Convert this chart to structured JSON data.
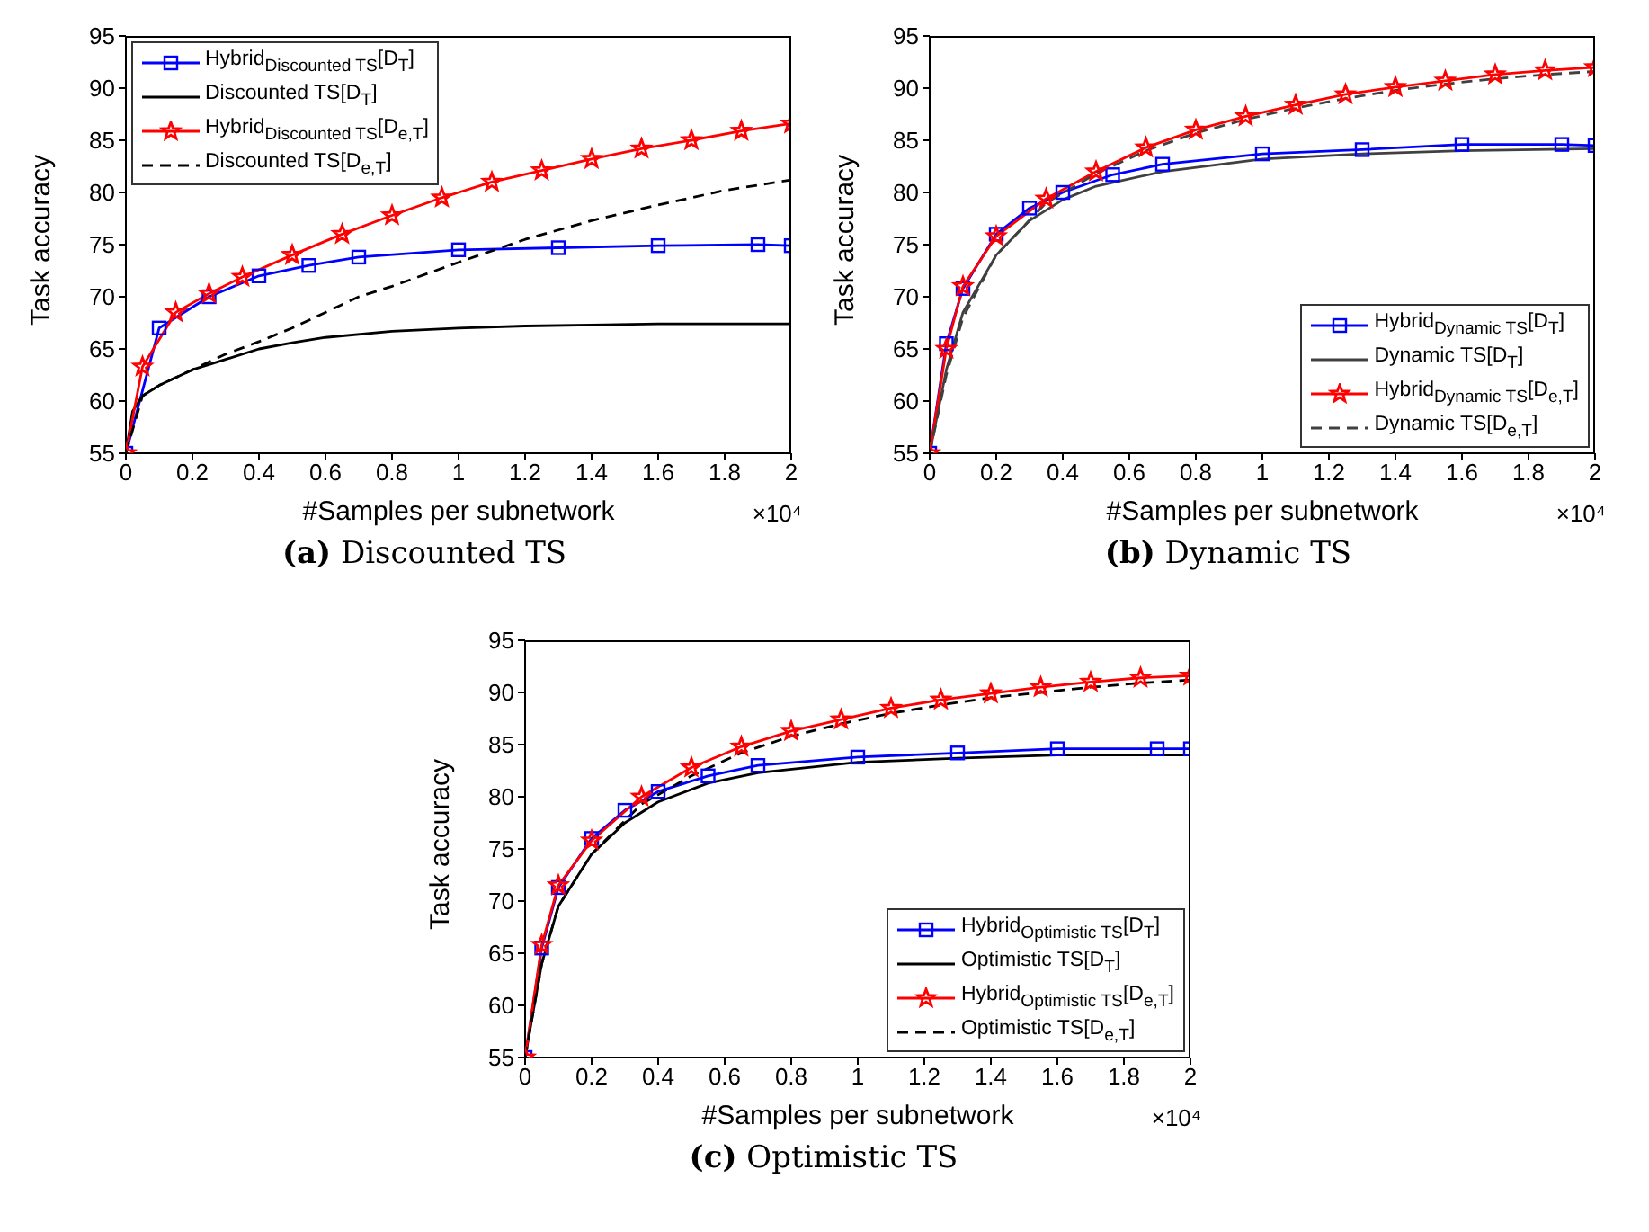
{
  "chart_data": [
    {
      "type": "line",
      "title": "(a) Discounted TS",
      "xlabel": "#Samples per subnetwork",
      "ylabel": "Task accuracy",
      "annotations": [
        "×10⁴"
      ],
      "xlim": [
        0,
        2
      ],
      "xticks": [
        0,
        0.2,
        0.4,
        0.6,
        0.8,
        1,
        1.2,
        1.4,
        1.6,
        1.8,
        2
      ],
      "ylim": [
        55,
        95
      ],
      "yticks": [
        55,
        60,
        65,
        70,
        75,
        80,
        85,
        90,
        95
      ],
      "grid": false,
      "legend": "top left",
      "series": [
        {
          "name": "Hybrid$_{Discounted TS}$[D$_{T}$]",
          "color": "#0000ff",
          "marker": "square",
          "line_style": "solid",
          "x": [
            0,
            0.1,
            0.25,
            0.4,
            0.55,
            0.7,
            1.0,
            1.3,
            1.6,
            1.9,
            2.0
          ],
          "values": [
            55,
            67,
            70,
            72,
            73,
            73.8,
            74.5,
            74.7,
            74.9,
            75,
            74.9
          ]
        },
        {
          "name": "Discounted TS[D$_{T}$]",
          "color": "#000000",
          "marker": "none",
          "line_style": "solid",
          "x": [
            0,
            0.02,
            0.05,
            0.1,
            0.2,
            0.3,
            0.4,
            0.5,
            0.6,
            0.8,
            1.0,
            1.2,
            1.4,
            1.6,
            1.8,
            2.0
          ],
          "values": [
            55,
            59,
            60.5,
            61.5,
            63,
            64,
            65,
            65.6,
            66.1,
            66.7,
            67,
            67.2,
            67.3,
            67.4,
            67.4,
            67.4
          ]
        },
        {
          "name": "Hybrid$_{Discounted TS}$[D$_{e,T}$]",
          "color": "#ff0000",
          "marker": "star",
          "line_style": "solid",
          "x": [
            0,
            0.05,
            0.15,
            0.25,
            0.35,
            0.5,
            0.65,
            0.8,
            0.95,
            1.1,
            1.25,
            1.4,
            1.55,
            1.7,
            1.85,
            2.0
          ],
          "values": [
            55,
            63.3,
            68.5,
            70.3,
            71.9,
            74,
            76,
            77.8,
            79.5,
            81,
            82.1,
            83.2,
            84.2,
            85,
            85.9,
            86.6
          ]
        },
        {
          "name": "Discounted TS[D$_{e,T}$]",
          "color": "#000000",
          "marker": "none",
          "line_style": "dashed",
          "x": [
            0,
            0.05,
            0.1,
            0.2,
            0.3,
            0.4,
            0.5,
            0.6,
            0.7,
            0.8,
            1.0,
            1.2,
            1.4,
            1.6,
            1.8,
            2.0
          ],
          "values": [
            55,
            60.5,
            61.5,
            63,
            64.5,
            65.7,
            67,
            68.5,
            70,
            71,
            73.3,
            75.5,
            77.3,
            78.8,
            80.2,
            81.2
          ]
        }
      ]
    },
    {
      "type": "line",
      "title": "(b) Dynamic TS",
      "xlabel": "#Samples per subnetwork",
      "ylabel": "Task accuracy",
      "annotations": [
        "×10⁴"
      ],
      "xlim": [
        0,
        2
      ],
      "xticks": [
        0,
        0.2,
        0.4,
        0.6,
        0.8,
        1,
        1.2,
        1.4,
        1.6,
        1.8,
        2
      ],
      "ylim": [
        55,
        95
      ],
      "yticks": [
        55,
        60,
        65,
        70,
        75,
        80,
        85,
        90,
        95
      ],
      "grid": false,
      "legend": "bottom right",
      "series": [
        {
          "name": "Hybrid$_{Dynamic TS}$[D$_{T}$]",
          "color": "#0000ff",
          "marker": "square",
          "line_style": "solid",
          "x": [
            0,
            0.05,
            0.1,
            0.2,
            0.3,
            0.4,
            0.55,
            0.7,
            1.0,
            1.3,
            1.6,
            1.9,
            2.0
          ],
          "values": [
            55,
            65.5,
            70.8,
            76,
            78.5,
            80,
            81.7,
            82.7,
            83.7,
            84.1,
            84.6,
            84.6,
            84.5
          ]
        },
        {
          "name": "Dynamic TS[D$_{T}$]",
          "color": "#404040",
          "marker": "none",
          "line_style": "solid",
          "x": [
            0,
            0.05,
            0.1,
            0.2,
            0.3,
            0.4,
            0.5,
            0.7,
            1.0,
            1.3,
            1.6,
            2.0
          ],
          "values": [
            55,
            63,
            68.5,
            74,
            77.3,
            79.3,
            80.6,
            82,
            83.2,
            83.7,
            84,
            84.2
          ]
        },
        {
          "name": "Hybrid$_{Dynamic TS}$[D$_{e,T}$]",
          "color": "#ff0000",
          "marker": "star",
          "line_style": "solid",
          "x": [
            0,
            0.05,
            0.1,
            0.2,
            0.35,
            0.5,
            0.65,
            0.8,
            0.95,
            1.1,
            1.25,
            1.4,
            1.55,
            1.7,
            1.85,
            2.0
          ],
          "values": [
            55,
            65,
            71,
            75.8,
            79.4,
            82,
            84.3,
            86,
            87.3,
            88.4,
            89.4,
            90.1,
            90.7,
            91.3,
            91.7,
            92
          ]
        },
        {
          "name": "Dynamic TS[D$_{e,T}$]",
          "color": "#404040",
          "marker": "none",
          "line_style": "dashed",
          "x": [
            0,
            0.05,
            0.1,
            0.2,
            0.35,
            0.5,
            0.65,
            0.8,
            0.95,
            1.1,
            1.25,
            1.4,
            1.55,
            1.7,
            1.85,
            2.0
          ],
          "values": [
            55,
            62.5,
            68,
            74,
            79,
            81.8,
            84,
            85.7,
            87,
            88.1,
            89,
            89.8,
            90.4,
            90.9,
            91.3,
            91.6
          ]
        }
      ]
    },
    {
      "type": "line",
      "title": "(c) Optimistic TS",
      "xlabel": "#Samples per subnetwork",
      "ylabel": "Task accuracy",
      "annotations": [
        "×10⁴"
      ],
      "xlim": [
        0,
        2
      ],
      "xticks": [
        0,
        0.2,
        0.4,
        0.6,
        0.8,
        1,
        1.2,
        1.4,
        1.6,
        1.8,
        2
      ],
      "ylim": [
        55,
        95
      ],
      "yticks": [
        55,
        60,
        65,
        70,
        75,
        80,
        85,
        90,
        95
      ],
      "grid": false,
      "legend": "bottom right",
      "series": [
        {
          "name": "Hybrid$_{Optimistic TS}$[D$_{T}$]",
          "color": "#0000ff",
          "marker": "square",
          "line_style": "solid",
          "x": [
            0,
            0.05,
            0.1,
            0.2,
            0.3,
            0.4,
            0.55,
            0.7,
            1.0,
            1.3,
            1.6,
            1.9,
            2.0
          ],
          "values": [
            55,
            65.5,
            71.3,
            76,
            78.7,
            80.5,
            82,
            83,
            83.8,
            84.2,
            84.6,
            84.6,
            84.6
          ]
        },
        {
          "name": "Optimistic TS[D$_{T}$]",
          "color": "#000000",
          "marker": "none",
          "line_style": "solid",
          "x": [
            0,
            0.05,
            0.1,
            0.2,
            0.3,
            0.4,
            0.55,
            0.7,
            1.0,
            1.3,
            1.6,
            2.0
          ],
          "values": [
            55,
            64,
            69.5,
            74.5,
            77.5,
            79.5,
            81.3,
            82.3,
            83.3,
            83.7,
            84,
            84
          ]
        },
        {
          "name": "Hybrid$_{Optimistic TS}$[D$_{e,T}$]",
          "color": "#ff0000",
          "marker": "star",
          "line_style": "solid",
          "x": [
            0,
            0.05,
            0.1,
            0.2,
            0.35,
            0.5,
            0.65,
            0.8,
            0.95,
            1.1,
            1.25,
            1.4,
            1.55,
            1.7,
            1.85,
            2.0
          ],
          "values": [
            55,
            65.8,
            71.5,
            75.8,
            80,
            82.8,
            84.8,
            86.3,
            87.4,
            88.5,
            89.3,
            89.9,
            90.5,
            91,
            91.4,
            91.6
          ]
        },
        {
          "name": "Optimistic TS[D$_{e,T}$]",
          "color": "#000000",
          "marker": "none",
          "line_style": "dashed",
          "x": [
            0,
            0.05,
            0.1,
            0.2,
            0.35,
            0.5,
            0.65,
            0.8,
            0.95,
            1.1,
            1.25,
            1.4,
            1.55,
            1.7,
            1.85,
            2.0
          ],
          "values": [
            55,
            64,
            69.5,
            74.5,
            79.3,
            82,
            84.2,
            85.8,
            87,
            88,
            88.8,
            89.5,
            90,
            90.5,
            90.9,
            91.2
          ]
        }
      ]
    }
  ]
}
